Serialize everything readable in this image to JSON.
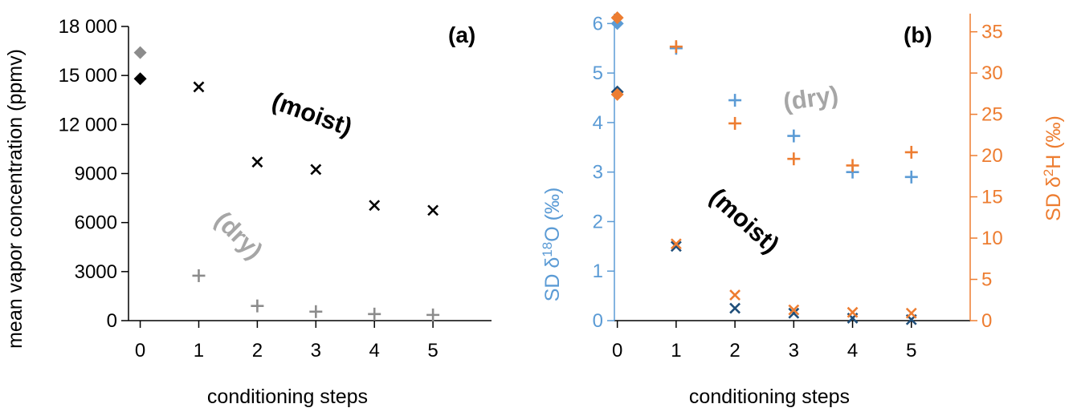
{
  "colors": {
    "black": "#000000",
    "gray": "#8c8c8c",
    "light_gray": "#a6a6a6",
    "blue": "#5b9bd5",
    "dark_blue": "#1f4e79",
    "orange": "#ed7d31"
  },
  "chart_data": [
    {
      "type": "scatter",
      "panel_label": "(a)",
      "xlabel": "conditioning steps",
      "ylabel": "mean vapor concentration (ppmv)",
      "xlim": [
        -0.2,
        6
      ],
      "ylim": [
        0,
        18000
      ],
      "x_ticks": [
        0,
        1,
        2,
        3,
        4,
        5
      ],
      "y_ticks": [
        0,
        3000,
        6000,
        9000,
        12000,
        15000,
        18000
      ],
      "y_tick_labels": [
        "0",
        "3000",
        "6000",
        "9000",
        "12 000",
        "15 000",
        "18 000"
      ],
      "grid": false,
      "legend": "none",
      "annotations": [
        {
          "text": "(moist)",
          "color": "#000000"
        },
        {
          "text": "(dry)",
          "color": "#a6a6a6"
        }
      ],
      "series": [
        {
          "key": "moist",
          "marker": "x",
          "color": "#000000",
          "points": [
            {
              "x": 1,
              "y": 14300
            },
            {
              "x": 2,
              "y": 9700
            },
            {
              "x": 3,
              "y": 9250
            },
            {
              "x": 4,
              "y": 7050
            },
            {
              "x": 5,
              "y": 6750
            }
          ]
        },
        {
          "key": "moist_step0",
          "marker": "diamond",
          "color": "#000000",
          "points": [
            {
              "x": 0,
              "y": 14800
            }
          ]
        },
        {
          "key": "dry",
          "marker": "plus",
          "color": "#8c8c8c",
          "points": [
            {
              "x": 1,
              "y": 2750
            },
            {
              "x": 2,
              "y": 900
            },
            {
              "x": 3,
              "y": 550
            },
            {
              "x": 4,
              "y": 400
            },
            {
              "x": 5,
              "y": 350
            }
          ]
        },
        {
          "key": "dry_step0",
          "marker": "diamond",
          "color": "#8c8c8c",
          "points": [
            {
              "x": 0,
              "y": 16400
            }
          ]
        }
      ]
    },
    {
      "type": "scatter",
      "panel_label": "(b)",
      "xlabel": "conditioning steps",
      "ylabel_left": "SD δ18O (‰)",
      "ylabel_right": "SD δ2H (‰)",
      "xlim": [
        -0.05,
        6
      ],
      "ylim_left": [
        0,
        6.2
      ],
      "ylim_right": [
        0,
        37.2
      ],
      "x_ticks": [
        0,
        1,
        2,
        3,
        4,
        5
      ],
      "y_ticks_left": [
        0,
        1,
        2,
        3,
        4,
        5,
        6
      ],
      "y_ticks_right": [
        0,
        5,
        10,
        15,
        20,
        25,
        30,
        35
      ],
      "grid": false,
      "legend": "none",
      "annotations": [
        {
          "text": "(dry)",
          "color": "#a6a6a6"
        },
        {
          "text": "(moist)",
          "color": "#000000"
        }
      ],
      "series": [
        {
          "key": "d18O_dry",
          "axis": "left",
          "marker": "plus",
          "color": "#5b9bd5",
          "points": [
            {
              "x": 1,
              "y": 5.5
            },
            {
              "x": 2,
              "y": 4.45
            },
            {
              "x": 3,
              "y": 3.73
            },
            {
              "x": 4,
              "y": 3.0
            },
            {
              "x": 5,
              "y": 2.9
            }
          ]
        },
        {
          "key": "d18O_step0",
          "axis": "left",
          "marker": "diamond",
          "color": "#5b9bd5",
          "points": [
            {
              "x": 0,
              "y": 6.0
            }
          ]
        },
        {
          "key": "d18O_moist",
          "axis": "left",
          "marker": "x",
          "color": "#1f4e79",
          "points": [
            {
              "x": 1,
              "y": 1.5
            },
            {
              "x": 2,
              "y": 0.25
            },
            {
              "x": 3,
              "y": 0.15
            },
            {
              "x": 4,
              "y": 0.05
            },
            {
              "x": 5,
              "y": 0.02
            }
          ]
        },
        {
          "key": "d18O_moist_step0",
          "axis": "left",
          "marker": "diamond",
          "color": "#1f4e79",
          "points": [
            {
              "x": 0,
              "y": 4.62
            }
          ]
        },
        {
          "key": "d2H_dry",
          "axis": "right",
          "marker": "plus",
          "color": "#ed7d31",
          "points": [
            {
              "x": 1,
              "y": 33.2
            },
            {
              "x": 2,
              "y": 23.9
            },
            {
              "x": 3,
              "y": 19.6
            },
            {
              "x": 4,
              "y": 18.8
            },
            {
              "x": 5,
              "y": 20.4
            }
          ]
        },
        {
          "key": "d2H_step0",
          "axis": "right",
          "marker": "diamond",
          "color": "#ed7d31",
          "points": [
            {
              "x": 0,
              "y": 36.7
            }
          ]
        },
        {
          "key": "d2H_moist",
          "axis": "right",
          "marker": "x",
          "color": "#ed7d31",
          "points": [
            {
              "x": 1,
              "y": 9.3
            },
            {
              "x": 2,
              "y": 3.1
            },
            {
              "x": 3,
              "y": 1.3
            },
            {
              "x": 4,
              "y": 1.0
            },
            {
              "x": 5,
              "y": 0.9
            }
          ]
        },
        {
          "key": "d2H_moist_step0",
          "axis": "right",
          "marker": "diamond",
          "color": "#ed7d31",
          "points": [
            {
              "x": 0,
              "y": 27.4
            }
          ]
        }
      ]
    }
  ]
}
